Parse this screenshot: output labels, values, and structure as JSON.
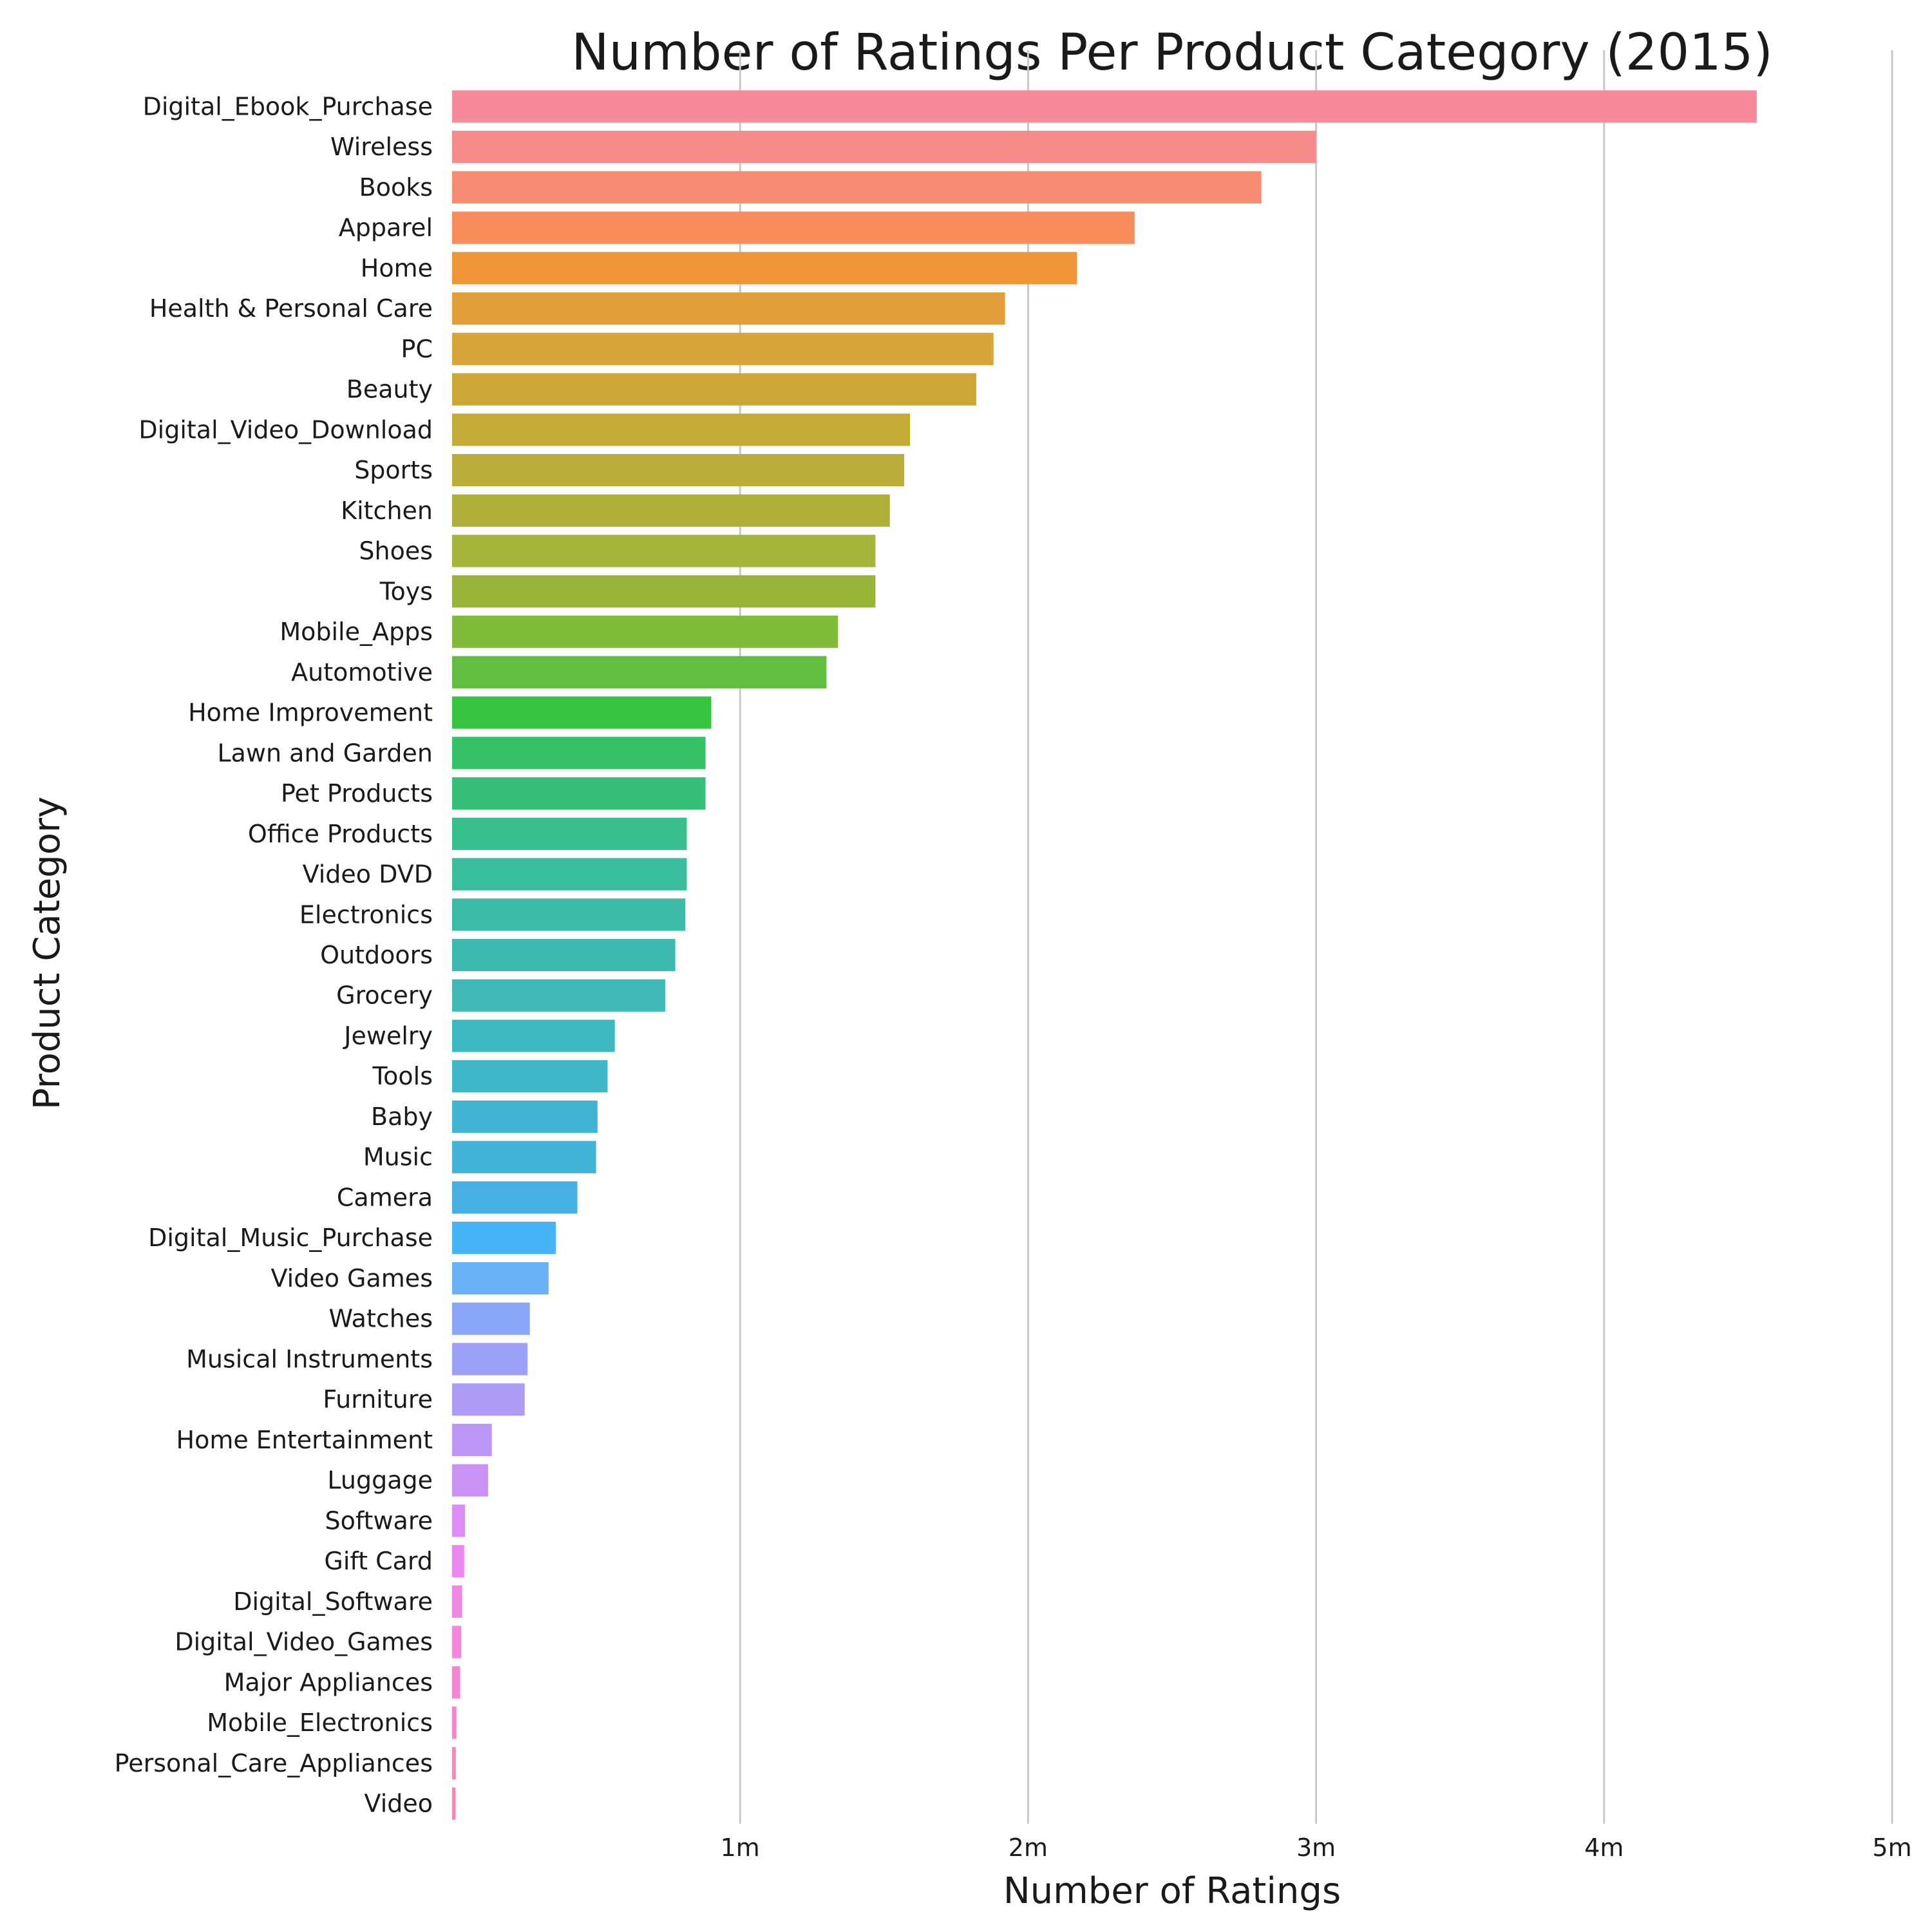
{
  "chart_data": {
    "type": "bar",
    "orientation": "horizontal",
    "title": "Number of Ratings Per Product Category (2015)",
    "xlabel": "Number of Ratings",
    "ylabel": "Product Category",
    "xlim": [
      0,
      5000000
    ],
    "xticks": [
      {
        "value": 1000000,
        "label": "1m"
      },
      {
        "value": 2000000,
        "label": "2m"
      },
      {
        "value": 3000000,
        "label": "3m"
      },
      {
        "value": 4000000,
        "label": "4m"
      },
      {
        "value": 5000000,
        "label": "5m"
      }
    ],
    "grid": "vertical",
    "categories": [
      "Digital_Ebook_Purchase",
      "Wireless",
      "Books",
      "Apparel",
      "Home",
      "Health & Personal Care",
      "PC",
      "Beauty",
      "Digital_Video_Download",
      "Sports",
      "Kitchen",
      "Shoes",
      "Toys",
      "Mobile_Apps",
      "Automotive",
      "Home Improvement",
      "Lawn and Garden",
      "Pet Products",
      "Office Products",
      "Video DVD",
      "Electronics",
      "Outdoors",
      "Grocery",
      "Jewelry",
      "Tools",
      "Baby",
      "Music",
      "Camera",
      "Digital_Music_Purchase",
      "Video Games",
      "Watches",
      "Musical Instruments",
      "Furniture",
      "Home Entertainment",
      "Luggage",
      "Software",
      "Gift Card",
      "Digital_Software",
      "Digital_Video_Games",
      "Major Appliances",
      "Mobile_Electronics",
      "Personal_Care_Appliances",
      "Video"
    ],
    "values": [
      4530000,
      3000000,
      2810000,
      2370000,
      2170000,
      1920000,
      1880000,
      1820000,
      1590000,
      1570000,
      1520000,
      1470000,
      1470000,
      1340000,
      1300000,
      900000,
      880000,
      880000,
      815000,
      815000,
      810000,
      775000,
      740000,
      565000,
      540000,
      505000,
      500000,
      435000,
      360000,
      335000,
      270000,
      262000,
      252000,
      138000,
      125000,
      45000,
      42000,
      35000,
      32000,
      28000,
      15000,
      13000,
      12000
    ],
    "colors": [
      "#f68a9a",
      "#f68b89",
      "#f78c74",
      "#f88c5b",
      "#f0943a",
      "#e39f3a",
      "#d8a53a",
      "#cca637",
      "#c4aa37",
      "#bbad39",
      "#aeaf38",
      "#a4b339",
      "#99b539",
      "#80bb39",
      "#63bd40",
      "#36c441",
      "#36c167",
      "#37bf7a",
      "#39be8e",
      "#3abd9d",
      "#3cbba6",
      "#3dbab0",
      "#3fb8b6",
      "#3fb8c1",
      "#40b6c9",
      "#41b4d3",
      "#41b3d7",
      "#46b0e2",
      "#45b3f5",
      "#6ab0f6",
      "#89a7f6",
      "#9ca1f6",
      "#ad9cf6",
      "#bc97f6",
      "#cb92f6",
      "#dc8cf5",
      "#ec86ef",
      "#f087e5",
      "#f387dd",
      "#f287d1",
      "#f387c8",
      "#f488bd",
      "#f488b3"
    ]
  }
}
